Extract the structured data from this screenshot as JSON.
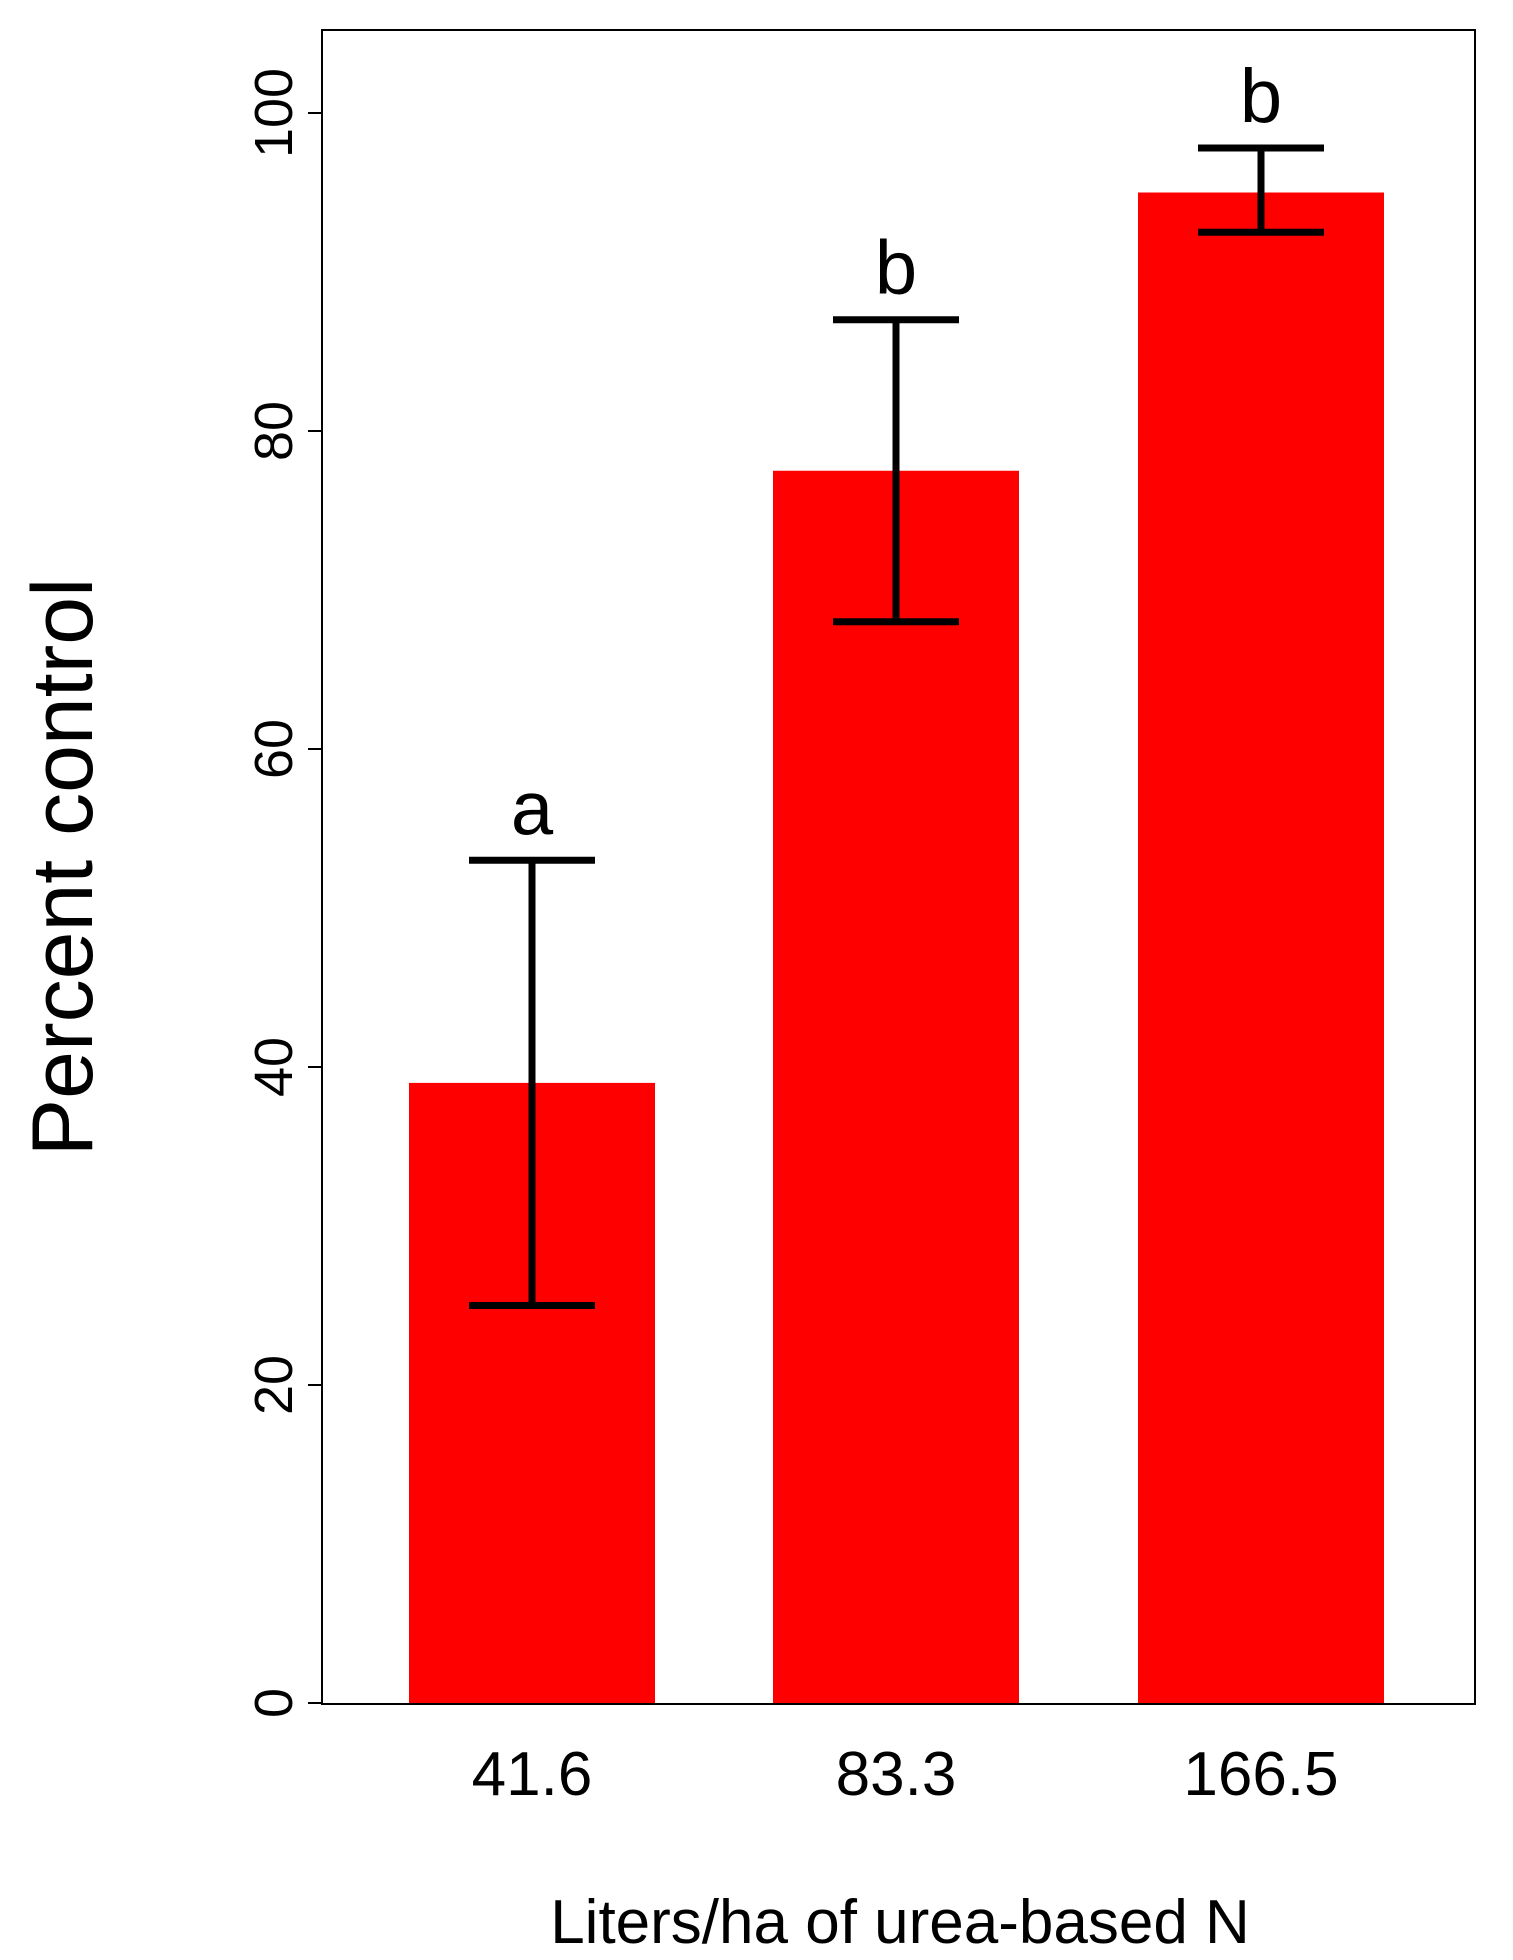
{
  "chart_data": {
    "type": "bar",
    "title": "",
    "xlabel": "Liters/ha of urea-based N",
    "ylabel": "Percent control",
    "categories": [
      "41.6",
      "83.3",
      "166.5"
    ],
    "values": [
      39,
      77.5,
      95
    ],
    "error_low": [
      25,
      68,
      92.5
    ],
    "error_high": [
      53,
      87,
      97.8
    ],
    "significance_letters": [
      "a",
      "b",
      "b"
    ],
    "ylim": [
      0,
      105
    ],
    "yticks": [
      "0",
      "20",
      "40",
      "60",
      "80",
      "100"
    ],
    "bar_color": "#ff0000",
    "grid": false,
    "legend": "none"
  }
}
